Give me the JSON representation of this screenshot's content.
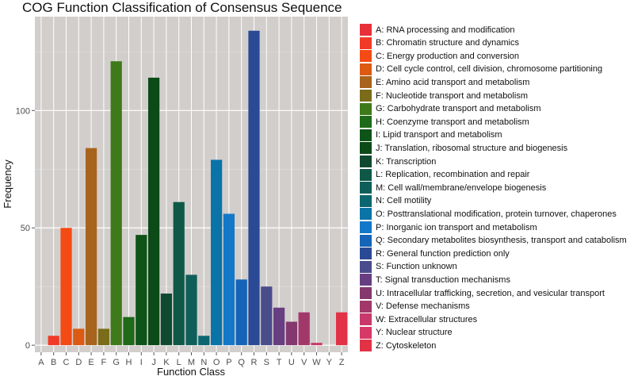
{
  "chart_data": {
    "type": "bar",
    "title": "COG Function Classification of Consensus Sequence",
    "xlabel": "Function Class",
    "ylabel": "Frequency",
    "ylim": [
      -3,
      140
    ],
    "yticks": [
      0,
      50,
      100
    ],
    "grid": true,
    "legend_position": "right",
    "categories": [
      "A",
      "B",
      "C",
      "D",
      "E",
      "F",
      "G",
      "H",
      "I",
      "J",
      "K",
      "L",
      "M",
      "N",
      "O",
      "P",
      "Q",
      "R",
      "S",
      "T",
      "U",
      "V",
      "W",
      "Y",
      "Z"
    ],
    "values": [
      0,
      4,
      50,
      7,
      84,
      7,
      121,
      12,
      47,
      114,
      22,
      61,
      30,
      4,
      79,
      56,
      28,
      134,
      25,
      16,
      10,
      14,
      1,
      0,
      14
    ],
    "colors": [
      "#e8303a",
      "#f23a28",
      "#f44a14",
      "#dc5a12",
      "#a8641c",
      "#7a6c18",
      "#3e7a1a",
      "#1e6a18",
      "#0e5418",
      "#0c4a18",
      "#0f4a30",
      "#0f5848",
      "#0f5e5a",
      "#0c6670",
      "#0a73a8",
      "#1478c8",
      "#1464b8",
      "#2a4a96",
      "#4a4c8c",
      "#683e82",
      "#84386e",
      "#a2386a",
      "#c8386a",
      "#d63868",
      "#e23246"
    ],
    "legend": [
      "A: RNA processing and modification",
      "B: Chromatin structure and dynamics",
      "C: Energy production and conversion",
      "D: Cell cycle control, cell division, chromosome partitioning",
      "E: Amino acid transport and metabolism",
      "F: Nucleotide transport and metabolism",
      "G: Carbohydrate transport and metabolism",
      "H: Coenzyme transport and metabolism",
      "I: Lipid transport and metabolism",
      "J: Translation, ribosomal structure and biogenesis",
      "K: Transcription",
      "L: Replication, recombination and repair",
      "M: Cell wall/membrane/envelope biogenesis",
      "N: Cell motility",
      "O: Posttranslational modification, protein turnover, chaperones",
      "P: Inorganic ion transport and metabolism",
      "Q: Secondary metabolites biosynthesis, transport and catabolism",
      "R: General function prediction only",
      "S: Function unknown",
      "T: Signal transduction mechanisms",
      "U: Intracellular trafficking, secretion, and vesicular transport",
      "V: Defense mechanisms",
      "W: Extracellular structures",
      "Y: Nuclear structure",
      "Z: Cytoskeleton"
    ]
  }
}
